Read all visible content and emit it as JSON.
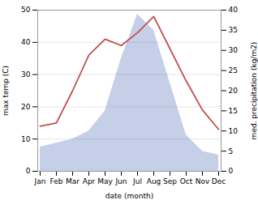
{
  "chart_data": {
    "type": "line",
    "categories": [
      "Jan",
      "Feb",
      "Mar",
      "Apr",
      "May",
      "Jun",
      "Jul",
      "Aug",
      "Sep",
      "Oct",
      "Nov",
      "Dec"
    ],
    "series": [
      {
        "type": "area",
        "axis": "y2",
        "color": "#c5d0e8",
        "values": [
          6,
          7,
          8,
          10,
          15,
          28,
          39,
          35,
          22,
          9,
          5,
          4
        ]
      },
      {
        "type": "line",
        "color": "#c0504d",
        "values": [
          14,
          15,
          25,
          36,
          41,
          39,
          43,
          48,
          38,
          28,
          19,
          13
        ]
      }
    ],
    "xlabel": "date (month)",
    "ylabel": "max temp (C)",
    "y2label": "med. precipitation (kg/m2)",
    "ylim": [
      0,
      50
    ],
    "yticks": [
      0,
      10,
      20,
      30,
      40,
      50
    ],
    "y2lim": [
      0,
      40
    ],
    "y2ticks": [
      0,
      5,
      10,
      15,
      20,
      25,
      30,
      35,
      40
    ],
    "grid": true
  }
}
